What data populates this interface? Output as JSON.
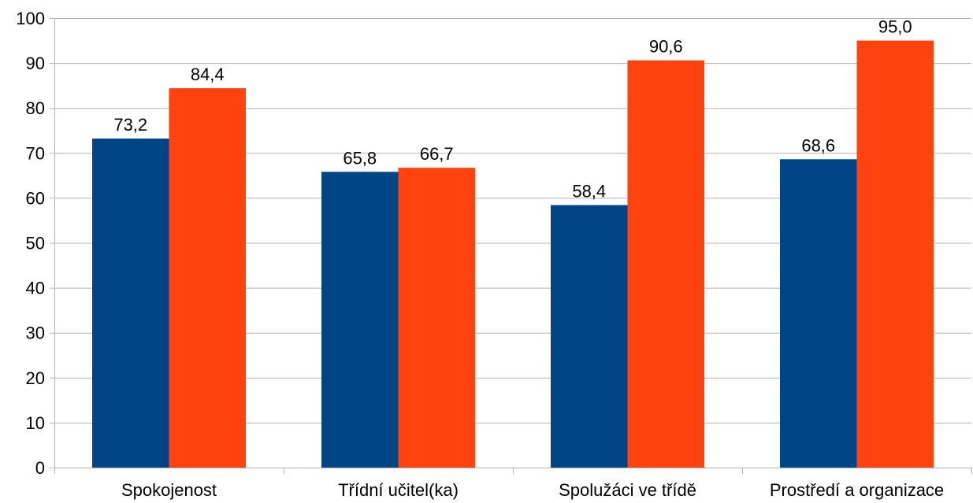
{
  "chart_data": {
    "type": "bar",
    "categories": [
      "Spokojenost",
      "Třídní učitel(ka)",
      "Spolužáci ve třídě",
      "Prostředí a organizace"
    ],
    "series": [
      {
        "values": [
          73.2,
          65.8,
          58.4,
          68.6
        ],
        "labels": [
          "73,2",
          "65,8",
          "58,4",
          "68,6"
        ],
        "color": "#004586"
      },
      {
        "values": [
          84.4,
          66.7,
          90.6,
          95.0
        ],
        "labels": [
          "84,4",
          "66,7",
          "90,6",
          "95,0"
        ],
        "color": "#ff420e"
      }
    ],
    "yticks": [
      0,
      10,
      20,
      30,
      40,
      50,
      60,
      70,
      80,
      90,
      100
    ],
    "ylim": [
      0,
      100
    ],
    "grid": true,
    "gridColor": "#b3b3b3",
    "axisColor": "#b3b3b3",
    "legend": "none"
  }
}
